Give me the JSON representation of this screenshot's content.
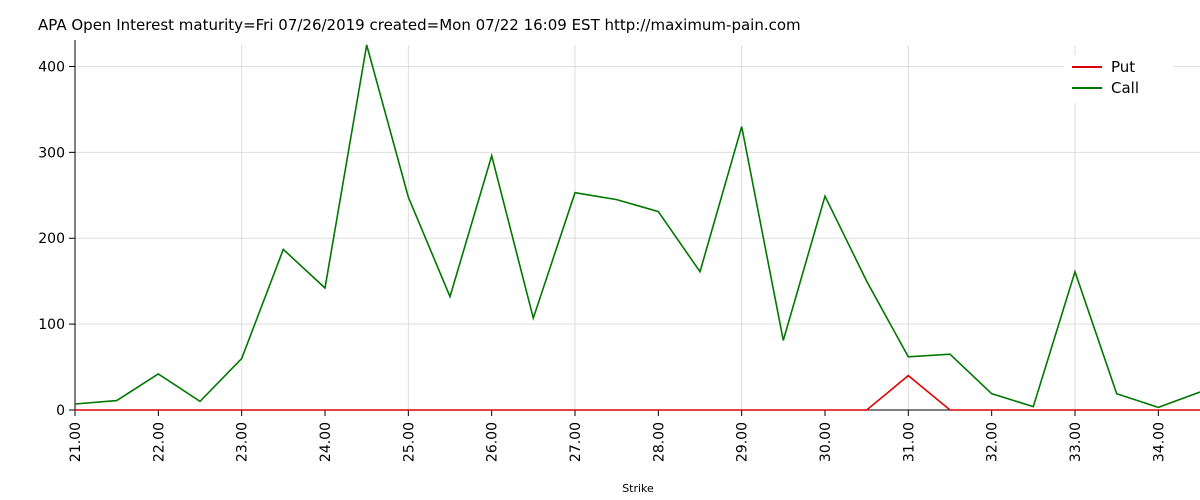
{
  "chart_data": {
    "type": "line",
    "title": "APA  Open  Interest maturity=Fri 07/26/2019  created=Mon 07/22 16:09 EST    http://maximum-pain.com",
    "xlabel": "Strike",
    "ylabel": "",
    "ylim": [
      0,
      425
    ],
    "y_ticks": [
      0,
      100,
      200,
      300,
      400
    ],
    "x_tick_labels": [
      "21.00",
      "22.00",
      "23.00",
      "24.00",
      "25.00",
      "26.00",
      "27.00",
      "28.00",
      "29.00",
      "30.00",
      "31.00",
      "32.00",
      "33.00",
      "34.00"
    ],
    "x": [
      21.0,
      21.5,
      22.0,
      22.5,
      23.0,
      23.5,
      24.0,
      24.5,
      25.0,
      25.5,
      26.0,
      26.5,
      27.0,
      27.5,
      28.0,
      28.5,
      29.0,
      29.5,
      30.0,
      30.5,
      31.0,
      31.5,
      32.0,
      32.5,
      33.0,
      33.5,
      34.0,
      34.5
    ],
    "grid": true,
    "legend_position": "top-right",
    "series": [
      {
        "name": "Put",
        "color": "#dd0000",
        "values": [
          0,
          0,
          0,
          0,
          0,
          0,
          0,
          0,
          0,
          0,
          0,
          0,
          0,
          0,
          0,
          0,
          0,
          0,
          0,
          0,
          40,
          0,
          0,
          0,
          0,
          0,
          0,
          0
        ]
      },
      {
        "name": "Call",
        "color": "#007700",
        "values": [
          7,
          11,
          42,
          10,
          60,
          187,
          142,
          425,
          248,
          132,
          296,
          107,
          253,
          245,
          231,
          161,
          330,
          81,
          249,
          150,
          62,
          65,
          19,
          4,
          161,
          19,
          3,
          21
        ]
      }
    ]
  }
}
